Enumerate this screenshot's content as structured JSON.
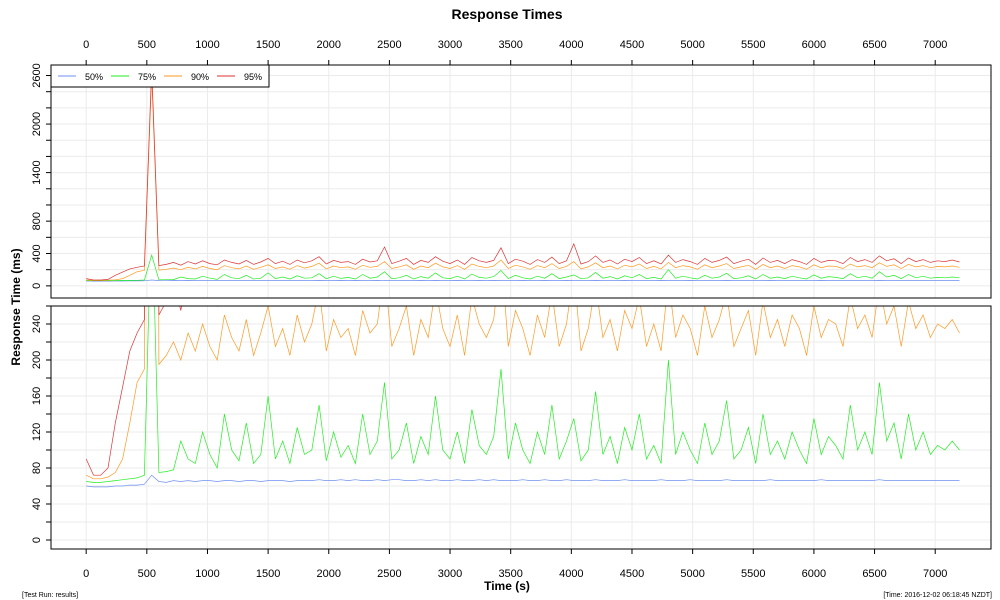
{
  "chart_data": {
    "type": "line",
    "title": "Response Times",
    "xlabel": "Time (s)",
    "ylabel": "Response Time (ms)",
    "x_step": 60,
    "xlim": [
      -290,
      7460
    ],
    "x_ticks": [
      0,
      500,
      1000,
      1500,
      2000,
      2500,
      3000,
      3500,
      4000,
      4500,
      5000,
      5500,
      6000,
      6500,
      7000
    ],
    "grid": true,
    "legend_position": "top-left",
    "panels": [
      {
        "name": "full",
        "ylim": [
          -150,
          2730
        ],
        "y_minor_step": 200,
        "y_tick_labels": [
          0,
          400,
          800,
          1400,
          2000,
          2600
        ]
      },
      {
        "name": "zoomed",
        "ylim": [
          -10,
          260
        ],
        "y_minor_step": 20,
        "y_tick_labels": [
          0,
          40,
          80,
          120,
          160,
          200,
          240
        ]
      }
    ],
    "series": [
      {
        "name": "50%",
        "color": "#6f8ff0",
        "values": [
          60,
          59,
          59,
          59,
          60,
          60,
          61,
          61,
          62,
          72,
          65,
          64,
          66,
          65,
          66,
          65,
          66,
          66,
          65,
          66,
          66,
          65,
          66,
          66,
          65,
          66,
          66,
          66,
          65,
          66,
          66,
          66,
          67,
          66,
          66,
          67,
          66,
          67,
          66,
          66,
          67,
          66,
          67,
          67,
          66,
          66,
          67,
          66,
          67,
          66,
          66,
          67,
          66,
          66,
          67,
          66,
          67,
          66,
          66,
          66,
          67,
          66,
          66,
          67,
          66,
          66,
          67,
          66,
          66,
          66,
          67,
          66,
          66,
          66,
          67,
          66,
          66,
          66,
          66,
          67,
          66,
          66,
          66,
          67,
          66,
          66,
          66,
          66,
          67,
          66,
          66,
          66,
          66,
          66,
          67,
          66,
          66,
          66,
          66,
          66,
          66,
          67,
          66,
          66,
          66,
          66,
          66,
          66,
          66,
          67,
          66,
          66,
          66,
          66,
          66,
          66,
          66,
          66,
          66,
          66,
          66
        ]
      },
      {
        "name": "75%",
        "color": "#22ee22",
        "values": [
          65,
          64,
          64,
          65,
          66,
          67,
          68,
          69,
          72,
          380,
          75,
          76,
          78,
          110,
          90,
          85,
          120,
          95,
          80,
          140,
          100,
          88,
          130,
          85,
          95,
          160,
          90,
          110,
          85,
          125,
          95,
          100,
          150,
          88,
          120,
          92,
          105,
          85,
          140,
          95,
          110,
          175,
          90,
          100,
          130,
          85,
          115,
          95,
          160,
          100,
          90,
          120,
          85,
          145,
          105,
          95,
          115,
          190,
          90,
          130,
          100,
          85,
          120,
          95,
          150,
          90,
          110,
          135,
          88,
          100,
          165,
          95,
          115,
          85,
          125,
          100,
          140,
          90,
          105,
          85,
          200,
          95,
          120,
          100,
          85,
          130,
          95,
          110,
          155,
          90,
          100,
          125,
          85,
          140,
          95,
          110,
          90,
          120,
          100,
          85,
          135,
          95,
          115,
          105,
          90,
          150,
          100,
          120,
          95,
          175,
          110,
          130,
          90,
          140,
          100,
          120,
          95,
          105,
          100,
          110,
          100
        ]
      },
      {
        "name": "90%",
        "color": "#ff9922",
        "values": [
          72,
          68,
          68,
          70,
          75,
          90,
          130,
          175,
          190,
          2600,
          195,
          205,
          220,
          200,
          230,
          210,
          240,
          215,
          200,
          250,
          225,
          210,
          245,
          205,
          230,
          260,
          215,
          235,
          205,
          250,
          220,
          240,
          280,
          210,
          245,
          225,
          235,
          205,
          255,
          230,
          240,
          300,
          215,
          235,
          260,
          205,
          245,
          225,
          280,
          235,
          215,
          250,
          205,
          270,
          240,
          225,
          245,
          320,
          215,
          255,
          235,
          205,
          250,
          225,
          275,
          215,
          240,
          300,
          210,
          235,
          285,
          225,
          245,
          210,
          255,
          235,
          270,
          215,
          240,
          210,
          290,
          225,
          250,
          235,
          205,
          260,
          225,
          245,
          275,
          215,
          235,
          255,
          205,
          265,
          225,
          245,
          215,
          250,
          235,
          205,
          260,
          225,
          245,
          240,
          215,
          270,
          235,
          250,
          225,
          285,
          240,
          260,
          215,
          265,
          235,
          250,
          225,
          240,
          235,
          245,
          230
        ]
      },
      {
        "name": "95%",
        "color": "#dd3333",
        "values": [
          90,
          72,
          72,
          80,
          130,
          170,
          210,
          230,
          245,
          2700,
          250,
          265,
          290,
          255,
          300,
          270,
          310,
          275,
          260,
          320,
          290,
          270,
          315,
          265,
          295,
          340,
          275,
          305,
          265,
          320,
          285,
          310,
          360,
          270,
          315,
          290,
          300,
          265,
          330,
          295,
          310,
          480,
          275,
          305,
          340,
          265,
          315,
          290,
          360,
          305,
          275,
          320,
          265,
          350,
          310,
          290,
          315,
          470,
          275,
          330,
          305,
          265,
          325,
          290,
          355,
          275,
          310,
          520,
          270,
          300,
          370,
          290,
          320,
          270,
          330,
          300,
          350,
          275,
          310,
          270,
          380,
          290,
          325,
          300,
          265,
          340,
          290,
          315,
          355,
          275,
          305,
          330,
          265,
          345,
          290,
          315,
          275,
          325,
          300,
          265,
          340,
          290,
          315,
          310,
          275,
          350,
          300,
          325,
          290,
          370,
          310,
          335,
          275,
          345,
          300,
          325,
          290,
          310,
          300,
          320,
          295
        ]
      }
    ]
  },
  "footer": {
    "left": "[Test Run: results]",
    "right": "[Time: 2016-12-02 06:18:45 NZDT]"
  }
}
